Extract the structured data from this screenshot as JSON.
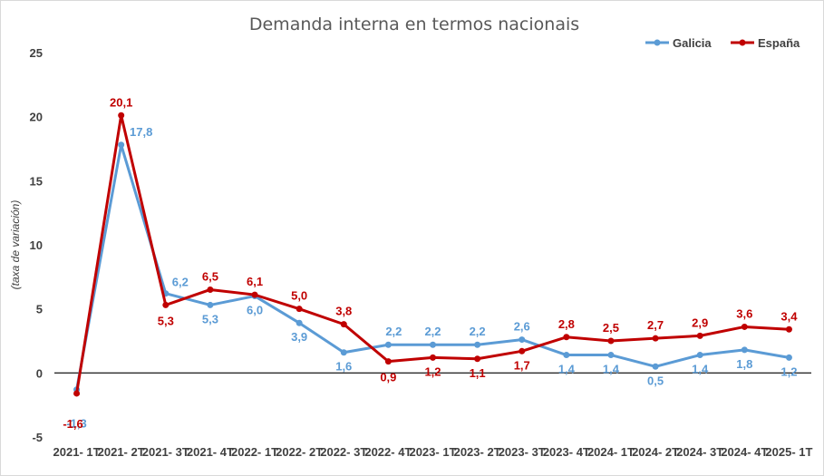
{
  "chart_data": {
    "type": "line",
    "title": "Demanda interna en termos nacionais",
    "ylabel": "(taxa de variación)",
    "xlabel": "",
    "ylim": [
      -5,
      25
    ],
    "yticks": [
      "25",
      "20",
      "15",
      "10",
      "5",
      "0",
      "-5"
    ],
    "categories": [
      "2021- 1T",
      "2021- 2T",
      "2021- 3T",
      "2021- 4T",
      "2022- 1T",
      "2022- 2T",
      "2022- 3T",
      "2022- 4T",
      "2023- 1T",
      "2023- 2T",
      "2023- 3T",
      "2023- 4T",
      "2024- 1T",
      "2024- 2T",
      "2024- 3T",
      "2024- 4T",
      "2025- 1T"
    ],
    "legend_position": "top-right",
    "series": [
      {
        "name": "Galicia",
        "color": "#5B9BD5",
        "values": [
          -1.3,
          17.8,
          6.2,
          5.3,
          6.0,
          3.9,
          1.6,
          2.2,
          2.2,
          2.2,
          2.6,
          1.4,
          1.4,
          0.5,
          1.4,
          1.8,
          1.2
        ],
        "labels": [
          "-1,3",
          "17,8",
          "6,2",
          "5,3",
          "6,0",
          "3,9",
          "1,6",
          "2,2",
          "2,2",
          "2,2",
          "2,6",
          "1,4",
          "1,4",
          "0,5",
          "1,4",
          "1,8",
          "1,2"
        ]
      },
      {
        "name": "España",
        "color": "#C00000",
        "values": [
          -1.6,
          20.1,
          5.3,
          6.5,
          6.1,
          5.0,
          3.8,
          0.9,
          1.2,
          1.1,
          1.7,
          2.8,
          2.5,
          2.7,
          2.9,
          3.6,
          3.4
        ],
        "labels": [
          "-1,6",
          "20,1",
          "5,3",
          "6,5",
          "6,1",
          "5,0",
          "3,8",
          "0,9",
          "1,2",
          "1,1",
          "1,7",
          "2,8",
          "2,5",
          "2,7",
          "2,9",
          "3,6",
          "3,4"
        ]
      }
    ]
  }
}
